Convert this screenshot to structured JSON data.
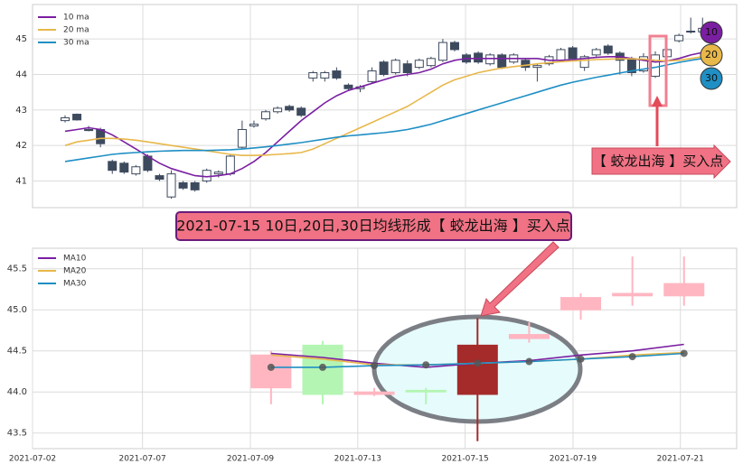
{
  "chart_data": [
    {
      "type": "candlestick",
      "categories": [
        null,
        null,
        null,
        null,
        null,
        null,
        null,
        null,
        null,
        null,
        null,
        null,
        null,
        null,
        null,
        null,
        null,
        null,
        null,
        null,
        null,
        null,
        null,
        null,
        null,
        null,
        null,
        null,
        null,
        null,
        null,
        null,
        null,
        null,
        null,
        null,
        null,
        null,
        null,
        null,
        null,
        null,
        null,
        null,
        null,
        null,
        null,
        null,
        null,
        null,
        null,
        null,
        null,
        null,
        null
      ],
      "open": [
        42.7,
        42.88,
        42.45,
        42.45,
        41.55,
        41.5,
        41.2,
        41.7,
        41.15,
        40.55,
        40.95,
        40.95,
        41.0,
        41.2,
        41.2,
        41.95,
        42.55,
        42.75,
        42.95,
        43.1,
        43.05,
        43.9,
        43.9,
        44.1,
        43.7,
        43.6,
        43.8,
        44.35,
        44.05,
        44.3,
        44.2,
        44.25,
        44.4,
        44.9,
        44.55,
        44.6,
        44.3,
        44.55,
        44.35,
        44.4,
        44.2,
        44.3,
        44.4,
        44.75,
        44.2,
        44.55,
        44.8,
        44.6,
        44.45,
        44.1,
        43.95,
        44.5,
        44.95,
        45.2,
        45.2
      ],
      "high": [
        42.85,
        42.9,
        42.55,
        42.5,
        41.6,
        41.55,
        41.45,
        41.75,
        41.2,
        41.3,
        41.0,
        41.0,
        41.35,
        41.3,
        41.75,
        42.7,
        42.7,
        43.0,
        43.1,
        43.15,
        43.1,
        44.1,
        44.1,
        44.2,
        43.75,
        43.7,
        44.2,
        44.4,
        44.45,
        44.4,
        44.45,
        44.5,
        45.0,
        44.95,
        44.6,
        44.65,
        44.6,
        44.6,
        44.6,
        44.45,
        44.3,
        44.55,
        44.75,
        44.8,
        44.55,
        44.75,
        44.85,
        44.65,
        44.5,
        44.6,
        44.65,
        44.75,
        45.15,
        45.6,
        45.6
      ],
      "low": [
        42.65,
        42.7,
        42.4,
        41.95,
        41.2,
        41.2,
        41.15,
        41.25,
        41.0,
        40.5,
        40.75,
        40.7,
        40.95,
        41.1,
        41.15,
        41.9,
        42.5,
        42.7,
        42.9,
        42.95,
        42.8,
        43.8,
        43.8,
        43.85,
        43.55,
        43.5,
        43.75,
        43.95,
        44.0,
        43.95,
        44.15,
        44.2,
        44.35,
        44.65,
        44.3,
        44.3,
        44.25,
        44.15,
        44.3,
        44.1,
        43.8,
        44.25,
        44.35,
        44.4,
        44.1,
        44.5,
        44.55,
        44.0,
        43.95,
        44.05,
        43.9,
        44.45,
        44.9,
        45.15,
        45.05
      ],
      "close": [
        42.78,
        42.72,
        42.42,
        42.05,
        41.3,
        41.25,
        41.4,
        41.3,
        41.05,
        41.2,
        40.8,
        40.75,
        41.3,
        41.25,
        41.7,
        42.45,
        42.6,
        42.95,
        43.05,
        43.0,
        42.85,
        44.05,
        44.05,
        43.9,
        43.6,
        43.65,
        44.1,
        44.0,
        44.4,
        44.05,
        44.4,
        44.45,
        44.9,
        44.7,
        44.35,
        44.35,
        44.55,
        44.2,
        44.55,
        44.2,
        44.25,
        44.5,
        44.7,
        44.45,
        44.5,
        44.7,
        44.6,
        44.4,
        44.05,
        44.5,
        44.55,
        44.7,
        45.1,
        45.22,
        45.3
      ],
      "candle_color": "#3d4a5e",
      "series": [
        {
          "name": "10 ma",
          "color": "#7b1fa2",
          "values": [
            42.4,
            42.45,
            42.5,
            42.45,
            42.3,
            42.1,
            41.9,
            41.7,
            41.5,
            41.35,
            41.25,
            41.15,
            41.12,
            41.15,
            41.2,
            41.35,
            41.55,
            41.8,
            42.1,
            42.4,
            42.7,
            42.95,
            43.2,
            43.4,
            43.55,
            43.65,
            43.75,
            43.85,
            43.95,
            44.0,
            44.05,
            44.15,
            44.3,
            44.4,
            44.45,
            44.45,
            44.45,
            44.45,
            44.45,
            44.45,
            44.45,
            44.4,
            44.4,
            44.42,
            44.45,
            44.48,
            44.5,
            44.5,
            44.45,
            44.4,
            44.35,
            44.38,
            44.45,
            44.55,
            44.62
          ]
        },
        {
          "name": "20 ma",
          "color": "#e8b84a",
          "values": [
            42.0,
            42.1,
            42.15,
            42.2,
            42.2,
            42.18,
            42.15,
            42.1,
            42.05,
            42.0,
            41.95,
            41.9,
            41.85,
            41.8,
            41.75,
            41.72,
            41.72,
            41.73,
            41.75,
            41.77,
            41.8,
            41.9,
            42.05,
            42.2,
            42.35,
            42.5,
            42.65,
            42.8,
            42.95,
            43.1,
            43.3,
            43.5,
            43.7,
            43.85,
            43.95,
            44.05,
            44.12,
            44.18,
            44.22,
            44.26,
            44.3,
            44.33,
            44.36,
            44.38,
            44.4,
            44.42,
            44.43,
            44.44,
            44.44,
            44.43,
            44.4,
            44.38,
            44.4,
            44.45,
            44.5
          ]
        },
        {
          "name": "30 ma",
          "color": "#1f8fc4",
          "values": [
            41.55,
            41.6,
            41.65,
            41.7,
            41.75,
            41.78,
            41.8,
            41.82,
            41.84,
            41.85,
            41.86,
            41.86,
            41.86,
            41.87,
            41.88,
            41.9,
            41.93,
            41.96,
            42.0,
            42.04,
            42.08,
            42.13,
            42.18,
            42.23,
            42.27,
            42.3,
            42.33,
            42.36,
            42.4,
            42.45,
            42.52,
            42.6,
            42.7,
            42.8,
            42.9,
            43.0,
            43.1,
            43.2,
            43.3,
            43.4,
            43.5,
            43.6,
            43.7,
            43.78,
            43.85,
            43.92,
            43.98,
            44.04,
            44.1,
            44.15,
            44.2,
            44.27,
            44.34,
            44.4,
            44.45
          ]
        }
      ],
      "ylim": [
        40.25,
        45.97
      ],
      "yticks": [
        41,
        42,
        43,
        44,
        45
      ],
      "grid": true,
      "badges": [
        "10",
        "20",
        "30"
      ],
      "annotation": "【 蛟龙出海 】买入点"
    },
    {
      "type": "candlestick",
      "x": [
        0,
        1,
        2,
        3,
        4,
        5,
        6,
        7,
        8
      ],
      "open": [
        44.05,
        44.57,
        43.97,
        44.02,
        43.97,
        44.65,
        45.0,
        45.17,
        45.17
      ],
      "high": [
        44.5,
        44.62,
        44.05,
        44.05,
        44.9,
        44.85,
        45.2,
        45.65,
        45.65
      ],
      "low": [
        43.85,
        43.85,
        43.95,
        43.85,
        43.4,
        44.6,
        44.88,
        45.05,
        45.05
      ],
      "close": [
        44.45,
        43.97,
        44.0,
        44.0,
        44.57,
        44.7,
        45.15,
        45.2,
        45.32
      ],
      "colors": [
        "#ffb6c1",
        "#b4f5b4",
        "#ffb6c1",
        "#b4f5b4",
        "#a52a2a",
        "#ffb6c1",
        "#ffb6c1",
        "#ffb6c1",
        "#ffb6c1"
      ],
      "series": [
        {
          "name": "MA10",
          "color": "#7b1fa2",
          "values": [
            44.47,
            44.42,
            44.35,
            44.3,
            44.35,
            44.38,
            44.45,
            44.5,
            44.58
          ]
        },
        {
          "name": "MA20",
          "color": "#e8b84a",
          "values": [
            44.45,
            44.4,
            44.33,
            44.33,
            44.35,
            44.37,
            44.4,
            44.45,
            44.48
          ]
        },
        {
          "name": "MA30",
          "color": "#1f8fc4",
          "values": [
            44.3,
            44.3,
            44.32,
            44.33,
            44.35,
            44.37,
            44.4,
            44.43,
            44.47
          ]
        }
      ],
      "xlim": [
        -4.62,
        9.02
      ],
      "xticks": [
        {
          "value": -4.62,
          "label": "2021-07-02"
        },
        {
          "value": -2.49,
          "label": "2021-07-07"
        },
        {
          "value": -0.4,
          "label": "2021-07-09"
        },
        {
          "value": 1.68,
          "label": "2021-07-13"
        },
        {
          "value": 3.76,
          "label": "2021-07-15"
        },
        {
          "value": 5.85,
          "label": "2021-07-19"
        },
        {
          "value": 7.93,
          "label": "2021-07-21"
        }
      ],
      "ylim": [
        43.31,
        45.75
      ],
      "yticks": [
        43.5,
        {
          "value": 44,
          "label": "44.0"
        },
        44.5,
        {
          "value": 45,
          "label": "45.0"
        },
        45.5
      ],
      "grid": true,
      "annotation": "2021-07-15 10日,20日,30日均线形成【 蛟龙出海 】买入点"
    }
  ]
}
